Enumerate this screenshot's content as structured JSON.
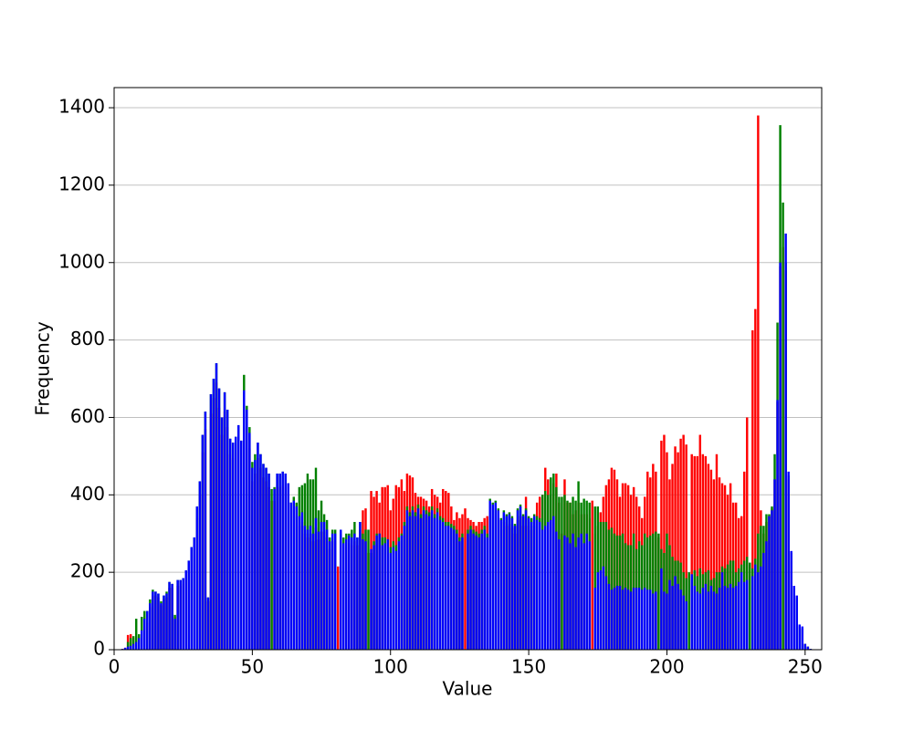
{
  "chart_data": {
    "type": "bar",
    "x_label": "Value",
    "y_label": "Frequency",
    "x": [
      0,
      1,
      2,
      3,
      4,
      5,
      6,
      7,
      8,
      9,
      10,
      11,
      12,
      13,
      14,
      15,
      16,
      17,
      18,
      19,
      20,
      21,
      22,
      23,
      24,
      25,
      26,
      27,
      28,
      29,
      30,
      31,
      32,
      33,
      34,
      35,
      36,
      37,
      38,
      39,
      40,
      41,
      42,
      43,
      44,
      45,
      46,
      47,
      48,
      49,
      50,
      51,
      52,
      53,
      54,
      55,
      56,
      57,
      58,
      59,
      60,
      61,
      62,
      63,
      64,
      65,
      66,
      67,
      68,
      69,
      70,
      71,
      72,
      73,
      74,
      75,
      76,
      77,
      78,
      79,
      80,
      81,
      82,
      83,
      84,
      85,
      86,
      87,
      88,
      89,
      90,
      91,
      92,
      93,
      94,
      95,
      96,
      97,
      98,
      99,
      100,
      101,
      102,
      103,
      104,
      105,
      106,
      107,
      108,
      109,
      110,
      111,
      112,
      113,
      114,
      115,
      116,
      117,
      118,
      119,
      120,
      121,
      122,
      123,
      124,
      125,
      126,
      127,
      128,
      129,
      130,
      131,
      132,
      133,
      134,
      135,
      136,
      137,
      138,
      139,
      140,
      141,
      142,
      143,
      144,
      145,
      146,
      147,
      148,
      149,
      150,
      151,
      152,
      153,
      154,
      155,
      156,
      157,
      158,
      159,
      160,
      161,
      162,
      163,
      164,
      165,
      166,
      167,
      168,
      169,
      170,
      171,
      172,
      173,
      174,
      175,
      176,
      177,
      178,
      179,
      180,
      181,
      182,
      183,
      184,
      185,
      186,
      187,
      188,
      189,
      190,
      191,
      192,
      193,
      194,
      195,
      196,
      197,
      198,
      199,
      200,
      201,
      202,
      203,
      204,
      205,
      206,
      207,
      208,
      209,
      210,
      211,
      212,
      213,
      214,
      215,
      216,
      217,
      218,
      219,
      220,
      221,
      222,
      223,
      224,
      225,
      226,
      227,
      228,
      229,
      230,
      231,
      232,
      233,
      234,
      235,
      236,
      237,
      238,
      239,
      240,
      241,
      242,
      243,
      244,
      245,
      246,
      247,
      248,
      249,
      250,
      251,
      252,
      253,
      254,
      255
    ],
    "series": [
      {
        "color": "#ff0000",
        "values": [
          0,
          0,
          0,
          2,
          5,
          38,
          40,
          30,
          35,
          30,
          40,
          60,
          70,
          110,
          140,
          140,
          135,
          115,
          130,
          135,
          160,
          160,
          85,
          165,
          165,
          170,
          190,
          210,
          245,
          270,
          340,
          400,
          510,
          570,
          125,
          610,
          650,
          690,
          625,
          555,
          615,
          575,
          505,
          495,
          510,
          540,
          500,
          620,
          575,
          520,
          435,
          455,
          495,
          470,
          445,
          435,
          420,
          385,
          385,
          420,
          420,
          425,
          420,
          400,
          350,
          360,
          345,
          320,
          330,
          300,
          290,
          300,
          280,
          315,
          285,
          305,
          305,
          290,
          260,
          280,
          280,
          215,
          290,
          255,
          265,
          275,
          270,
          280,
          270,
          310,
          360,
          365,
          250,
          410,
          395,
          410,
          380,
          420,
          420,
          425,
          360,
          390,
          425,
          420,
          440,
          410,
          455,
          450,
          445,
          405,
          395,
          395,
          390,
          385,
          370,
          415,
          400,
          395,
          380,
          415,
          410,
          405,
          370,
          335,
          355,
          340,
          350,
          365,
          340,
          335,
          330,
          320,
          330,
          330,
          340,
          345,
          355,
          345,
          350,
          335,
          310,
          330,
          320,
          325,
          315,
          300,
          335,
          345,
          320,
          395,
          320,
          310,
          320,
          380,
          395,
          400,
          470,
          440,
          400,
          430,
          455,
          380,
          300,
          440,
          380,
          380,
          350,
          360,
          380,
          350,
          350,
          350,
          340,
          385,
          300,
          320,
          355,
          395,
          425,
          440,
          470,
          465,
          440,
          395,
          430,
          430,
          425,
          400,
          420,
          395,
          370,
          340,
          395,
          460,
          445,
          480,
          460,
          290,
          540,
          555,
          510,
          440,
          480,
          525,
          510,
          545,
          555,
          530,
          195,
          505,
          500,
          500,
          555,
          505,
          500,
          480,
          465,
          440,
          505,
          445,
          430,
          425,
          400,
          430,
          380,
          380,
          340,
          345,
          460,
          600,
          220,
          825,
          880,
          1380,
          360,
          300,
          330,
          345,
          365,
          440,
          640,
          990,
          1040,
          980,
          440,
          250,
          160,
          130,
          60,
          55,
          15,
          5,
          2,
          0,
          0,
          0
        ]
      },
      {
        "color": "#008000",
        "values": [
          0,
          0,
          0,
          1,
          3,
          20,
          30,
          35,
          80,
          40,
          85,
          100,
          100,
          130,
          155,
          150,
          145,
          125,
          140,
          150,
          175,
          170,
          90,
          180,
          180,
          185,
          205,
          230,
          265,
          290,
          370,
          435,
          555,
          615,
          135,
          660,
          700,
          740,
          675,
          600,
          665,
          620,
          545,
          535,
          550,
          580,
          540,
          710,
          630,
          575,
          485,
          505,
          535,
          505,
          480,
          470,
          455,
          415,
          420,
          455,
          455,
          460,
          455,
          430,
          380,
          395,
          380,
          420,
          425,
          430,
          455,
          440,
          440,
          470,
          360,
          385,
          350,
          335,
          290,
          310,
          310,
          0,
          300,
          290,
          300,
          300,
          310,
          330,
          290,
          330,
          300,
          310,
          310,
          250,
          280,
          300,
          300,
          290,
          290,
          285,
          265,
          280,
          270,
          290,
          300,
          330,
          370,
          355,
          370,
          355,
          375,
          350,
          370,
          360,
          355,
          370,
          350,
          365,
          345,
          340,
          330,
          330,
          325,
          320,
          310,
          290,
          300,
          0,
          310,
          320,
          310,
          305,
          300,
          310,
          320,
          300,
          390,
          380,
          385,
          365,
          340,
          360,
          350,
          355,
          345,
          325,
          365,
          375,
          350,
          365,
          345,
          340,
          350,
          345,
          340,
          400,
          410,
          400,
          445,
          455,
          420,
          395,
          395,
          400,
          385,
          380,
          395,
          385,
          435,
          380,
          390,
          385,
          380,
          0,
          370,
          370,
          330,
          330,
          330,
          310,
          315,
          300,
          295,
          295,
          300,
          275,
          270,
          270,
          300,
          260,
          280,
          270,
          300,
          290,
          295,
          300,
          305,
          300,
          260,
          250,
          300,
          270,
          240,
          230,
          230,
          225,
          200,
          185,
          200,
          190,
          205,
          190,
          210,
          195,
          200,
          205,
          180,
          185,
          200,
          200,
          215,
          210,
          220,
          230,
          230,
          200,
          210,
          220,
          230,
          240,
          225,
          210,
          235,
          300,
          320,
          320,
          350,
          350,
          370,
          505,
          845,
          1355,
          1155,
          1000,
          450,
          250,
          160,
          135,
          60,
          55,
          15,
          8,
          2,
          0,
          0,
          0
        ]
      },
      {
        "color": "#0000ff",
        "values": [
          0,
          0,
          0,
          2,
          5,
          8,
          10,
          15,
          20,
          30,
          50,
          80,
          100,
          120,
          150,
          150,
          145,
          120,
          140,
          145,
          175,
          170,
          80,
          180,
          180,
          185,
          205,
          230,
          265,
          290,
          370,
          435,
          555,
          615,
          135,
          660,
          700,
          740,
          675,
          600,
          665,
          620,
          545,
          535,
          550,
          580,
          540,
          670,
          620,
          560,
          470,
          490,
          535,
          505,
          480,
          470,
          455,
          0,
          415,
          455,
          455,
          460,
          455,
          430,
          380,
          385,
          370,
          345,
          355,
          320,
          310,
          320,
          300,
          340,
          305,
          330,
          330,
          310,
          280,
          300,
          300,
          0,
          310,
          275,
          285,
          295,
          290,
          300,
          290,
          330,
          285,
          280,
          0,
          260,
          270,
          295,
          300,
          270,
          275,
          285,
          250,
          265,
          255,
          280,
          295,
          320,
          360,
          345,
          360,
          345,
          365,
          340,
          360,
          350,
          345,
          360,
          340,
          355,
          335,
          330,
          320,
          320,
          315,
          310,
          300,
          280,
          290,
          0,
          300,
          310,
          300,
          295,
          290,
          300,
          310,
          290,
          385,
          375,
          380,
          360,
          335,
          355,
          345,
          350,
          340,
          320,
          360,
          370,
          345,
          360,
          340,
          330,
          345,
          335,
          330,
          310,
          320,
          330,
          335,
          345,
          305,
          285,
          0,
          295,
          290,
          275,
          300,
          265,
          290,
          300,
          275,
          300,
          280,
          0,
          160,
          200,
          205,
          215,
          190,
          170,
          155,
          160,
          165,
          165,
          155,
          160,
          155,
          150,
          160,
          160,
          160,
          155,
          160,
          155,
          155,
          145,
          150,
          0,
          210,
          150,
          145,
          180,
          165,
          190,
          170,
          155,
          140,
          125,
          0,
          195,
          165,
          150,
          145,
          160,
          170,
          150,
          165,
          150,
          145,
          160,
          200,
          165,
          160,
          170,
          160,
          165,
          175,
          200,
          175,
          180,
          0,
          190,
          220,
          200,
          215,
          250,
          280,
          345,
          360,
          440,
          645,
          1000,
          0,
          1075,
          460,
          255,
          165,
          140,
          65,
          60,
          15,
          8,
          2,
          0,
          0,
          0
        ]
      }
    ],
    "xlim": [
      0,
      256
    ],
    "ylim": [
      0,
      1452
    ],
    "xticks": [
      0,
      50,
      100,
      150,
      200,
      250
    ],
    "yticks": [
      0,
      200,
      400,
      600,
      800,
      1000,
      1200,
      1400
    ],
    "grid": true
  }
}
